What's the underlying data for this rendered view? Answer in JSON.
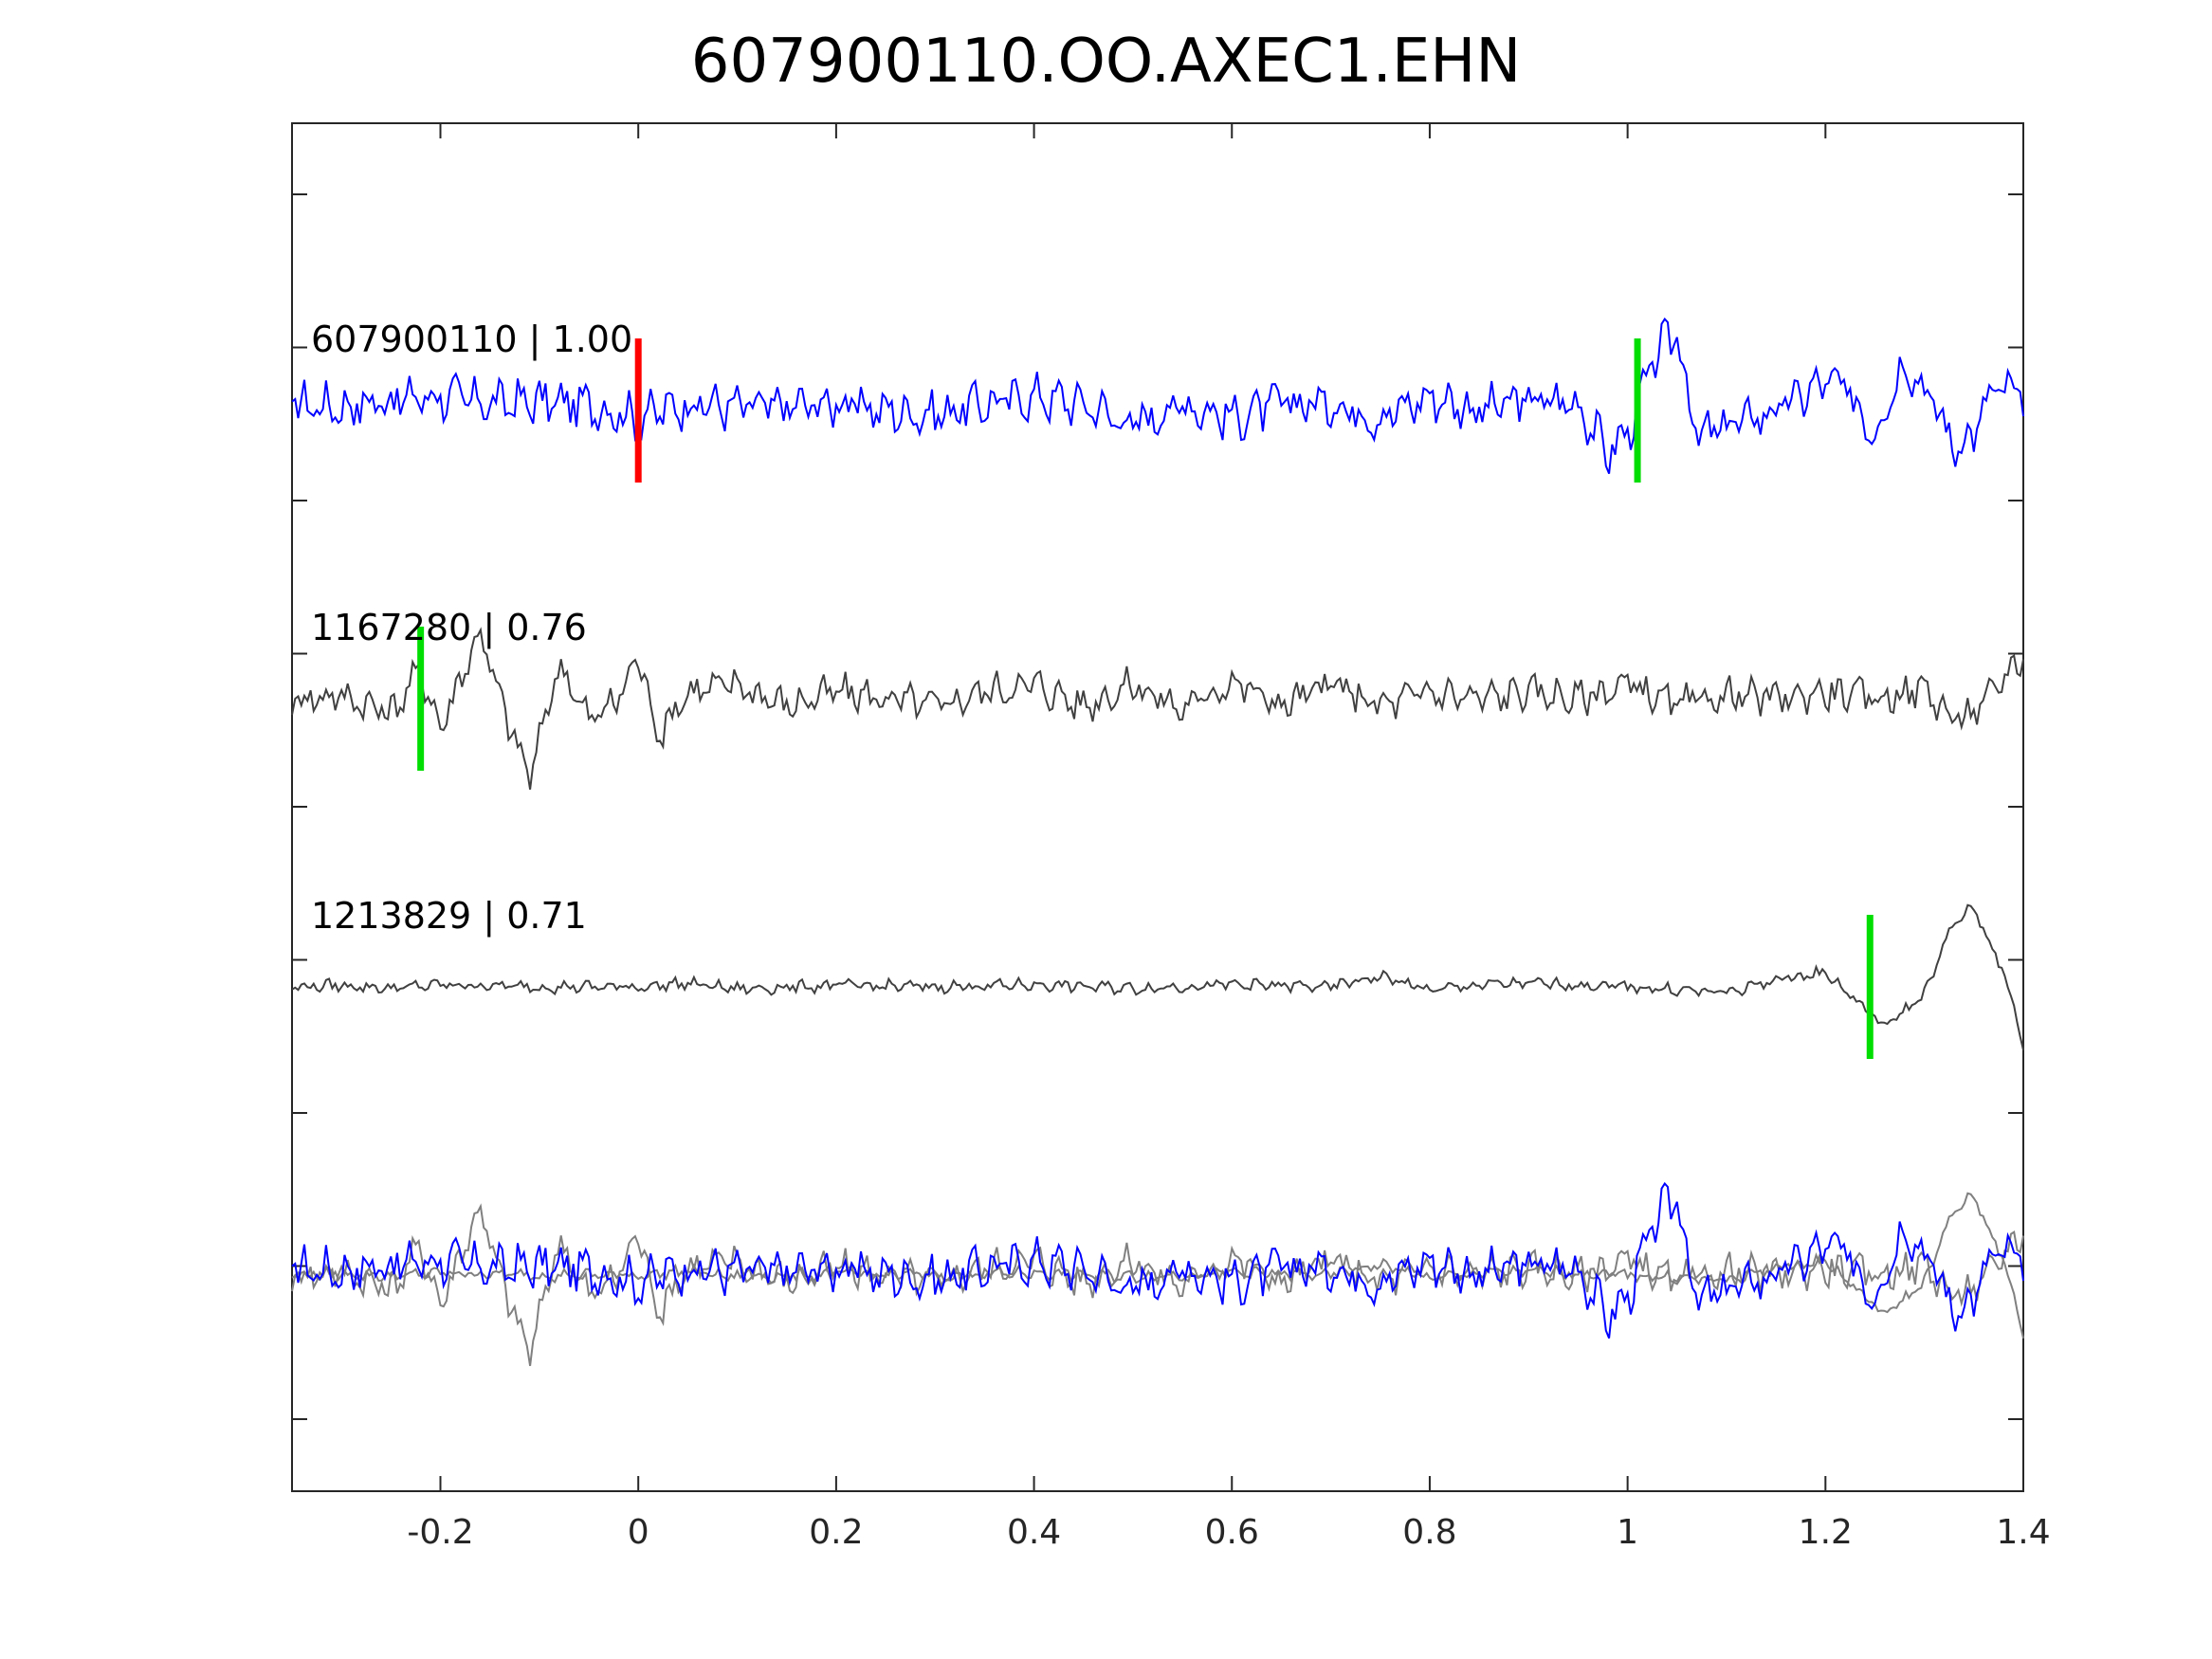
{
  "chart_data": {
    "type": "line",
    "title": "607900110.OO.AXEC1.EHN",
    "xlabel": "",
    "ylabel": "",
    "xlim": [
      -0.35,
      1.4
    ],
    "x_ticks": [
      -0.2,
      0,
      0.2,
      0.4,
      0.6,
      0.8,
      1,
      1.2,
      1.4
    ],
    "x_tick_labels": [
      "-0.2",
      "0",
      "0.2",
      "0.4",
      "0.6",
      "0.8",
      "1",
      "1.2",
      "1.4"
    ],
    "y_tick_count": 9,
    "grid": false,
    "traces": [
      {
        "label": "607900110 | 1.00",
        "color": "#0000ff",
        "offset": 0,
        "markers": [
          {
            "x": 0.0,
            "color": "#ff0000"
          },
          {
            "x": 1.01,
            "color": "#00dd00"
          }
        ],
        "points": [
          [
            -0.35,
            0.1
          ],
          [
            -0.3,
            0.05
          ],
          [
            -0.25,
            0.15
          ],
          [
            -0.2,
            0.2
          ],
          [
            -0.15,
            0.1
          ],
          [
            -0.1,
            0.12
          ],
          [
            -0.05,
            0.08
          ],
          [
            0.0,
            -0.1
          ],
          [
            0.05,
            0.1
          ],
          [
            0.1,
            0.05
          ],
          [
            0.15,
            0.05
          ],
          [
            0.2,
            0.1
          ],
          [
            0.25,
            0.0
          ],
          [
            0.3,
            -0.05
          ],
          [
            0.35,
            0.1
          ],
          [
            0.4,
            0.2
          ],
          [
            0.45,
            0.1
          ],
          [
            0.5,
            -0.2
          ],
          [
            0.55,
            0.1
          ],
          [
            0.6,
            -0.1
          ],
          [
            0.65,
            0.1
          ],
          [
            0.7,
            0.1
          ],
          [
            0.75,
            -0.1
          ],
          [
            0.8,
            0.2
          ],
          [
            0.85,
            0.0
          ],
          [
            0.9,
            0.15
          ],
          [
            0.95,
            0.1
          ],
          [
            0.98,
            -0.6
          ],
          [
            1.0,
            -0.3
          ],
          [
            1.03,
            0.8
          ],
          [
            1.05,
            1.1
          ],
          [
            1.07,
            -0.4
          ],
          [
            1.1,
            -0.2
          ],
          [
            1.15,
            0.0
          ],
          [
            1.2,
            0.4
          ],
          [
            1.22,
            0.3
          ],
          [
            1.25,
            -0.3
          ],
          [
            1.28,
            0.7
          ],
          [
            1.31,
            0.1
          ],
          [
            1.33,
            -0.5
          ],
          [
            1.35,
            -0.3
          ],
          [
            1.37,
            0.3
          ],
          [
            1.4,
            0.2
          ]
        ]
      },
      {
        "label": "1167280 | 0.76",
        "color": "#404040",
        "offset": -2,
        "markers": [
          {
            "x": -0.22,
            "color": "#00dd00"
          }
        ],
        "points": [
          [
            -0.35,
            0.0
          ],
          [
            -0.3,
            0.05
          ],
          [
            -0.25,
            -0.2
          ],
          [
            -0.22,
            0.4
          ],
          [
            -0.2,
            -0.4
          ],
          [
            -0.16,
            0.95
          ],
          [
            -0.14,
            0.0
          ],
          [
            -0.11,
            -1.1
          ],
          [
            -0.08,
            0.5
          ],
          [
            -0.05,
            -0.3
          ],
          [
            -0.02,
            0.0
          ],
          [
            0.0,
            0.6
          ],
          [
            0.02,
            -0.5
          ],
          [
            0.05,
            0.1
          ],
          [
            0.1,
            0.2
          ],
          [
            0.15,
            -0.1
          ],
          [
            0.2,
            0.1
          ],
          [
            0.25,
            0.0
          ],
          [
            0.3,
            -0.1
          ],
          [
            0.35,
            0.1
          ],
          [
            0.4,
            0.2
          ],
          [
            0.45,
            -0.1
          ],
          [
            0.5,
            0.2
          ],
          [
            0.55,
            -0.15
          ],
          [
            0.6,
            0.25
          ],
          [
            0.65,
            -0.1
          ],
          [
            0.7,
            0.2
          ],
          [
            0.75,
            -0.1
          ],
          [
            0.8,
            0.1
          ],
          [
            0.85,
            0.0
          ],
          [
            0.9,
            0.1
          ],
          [
            0.95,
            0.0
          ],
          [
            1.0,
            0.2
          ],
          [
            1.05,
            -0.1
          ],
          [
            1.1,
            0.05
          ],
          [
            1.15,
            0.0
          ],
          [
            1.2,
            0.1
          ],
          [
            1.25,
            0.0
          ],
          [
            1.3,
            0.15
          ],
          [
            1.33,
            -0.3
          ],
          [
            1.36,
            -0.1
          ],
          [
            1.38,
            0.3
          ],
          [
            1.4,
            0.6
          ]
        ]
      },
      {
        "label": "1213829 | 0.71",
        "color": "#404040",
        "offset": -4,
        "markers": [
          {
            "x": 1.245,
            "color": "#00dd00"
          }
        ],
        "points": [
          [
            -0.35,
            0.0
          ],
          [
            -0.3,
            0.02
          ],
          [
            -0.25,
            -0.02
          ],
          [
            -0.2,
            0.03
          ],
          [
            -0.1,
            0.0
          ],
          [
            0.0,
            0.0
          ],
          [
            0.05,
            0.05
          ],
          [
            0.1,
            -0.03
          ],
          [
            0.2,
            0.02
          ],
          [
            0.3,
            0.0
          ],
          [
            0.4,
            0.03
          ],
          [
            0.5,
            -0.02
          ],
          [
            0.6,
            0.03
          ],
          [
            0.7,
            0.0
          ],
          [
            0.75,
            0.15
          ],
          [
            0.8,
            -0.05
          ],
          [
            0.85,
            0.03
          ],
          [
            0.9,
            0.05
          ],
          [
            1.0,
            0.0
          ],
          [
            1.1,
            -0.08
          ],
          [
            1.15,
            0.1
          ],
          [
            1.2,
            0.2
          ],
          [
            1.24,
            -0.3
          ],
          [
            1.26,
            -0.55
          ],
          [
            1.3,
            -0.1
          ],
          [
            1.33,
            0.9
          ],
          [
            1.35,
            1.1
          ],
          [
            1.38,
            0.2
          ],
          [
            1.4,
            -0.8
          ]
        ]
      },
      {
        "label": "",
        "color": "#0000ff",
        "offset": -6,
        "markers": [],
        "overlay": true,
        "points": []
      }
    ]
  }
}
